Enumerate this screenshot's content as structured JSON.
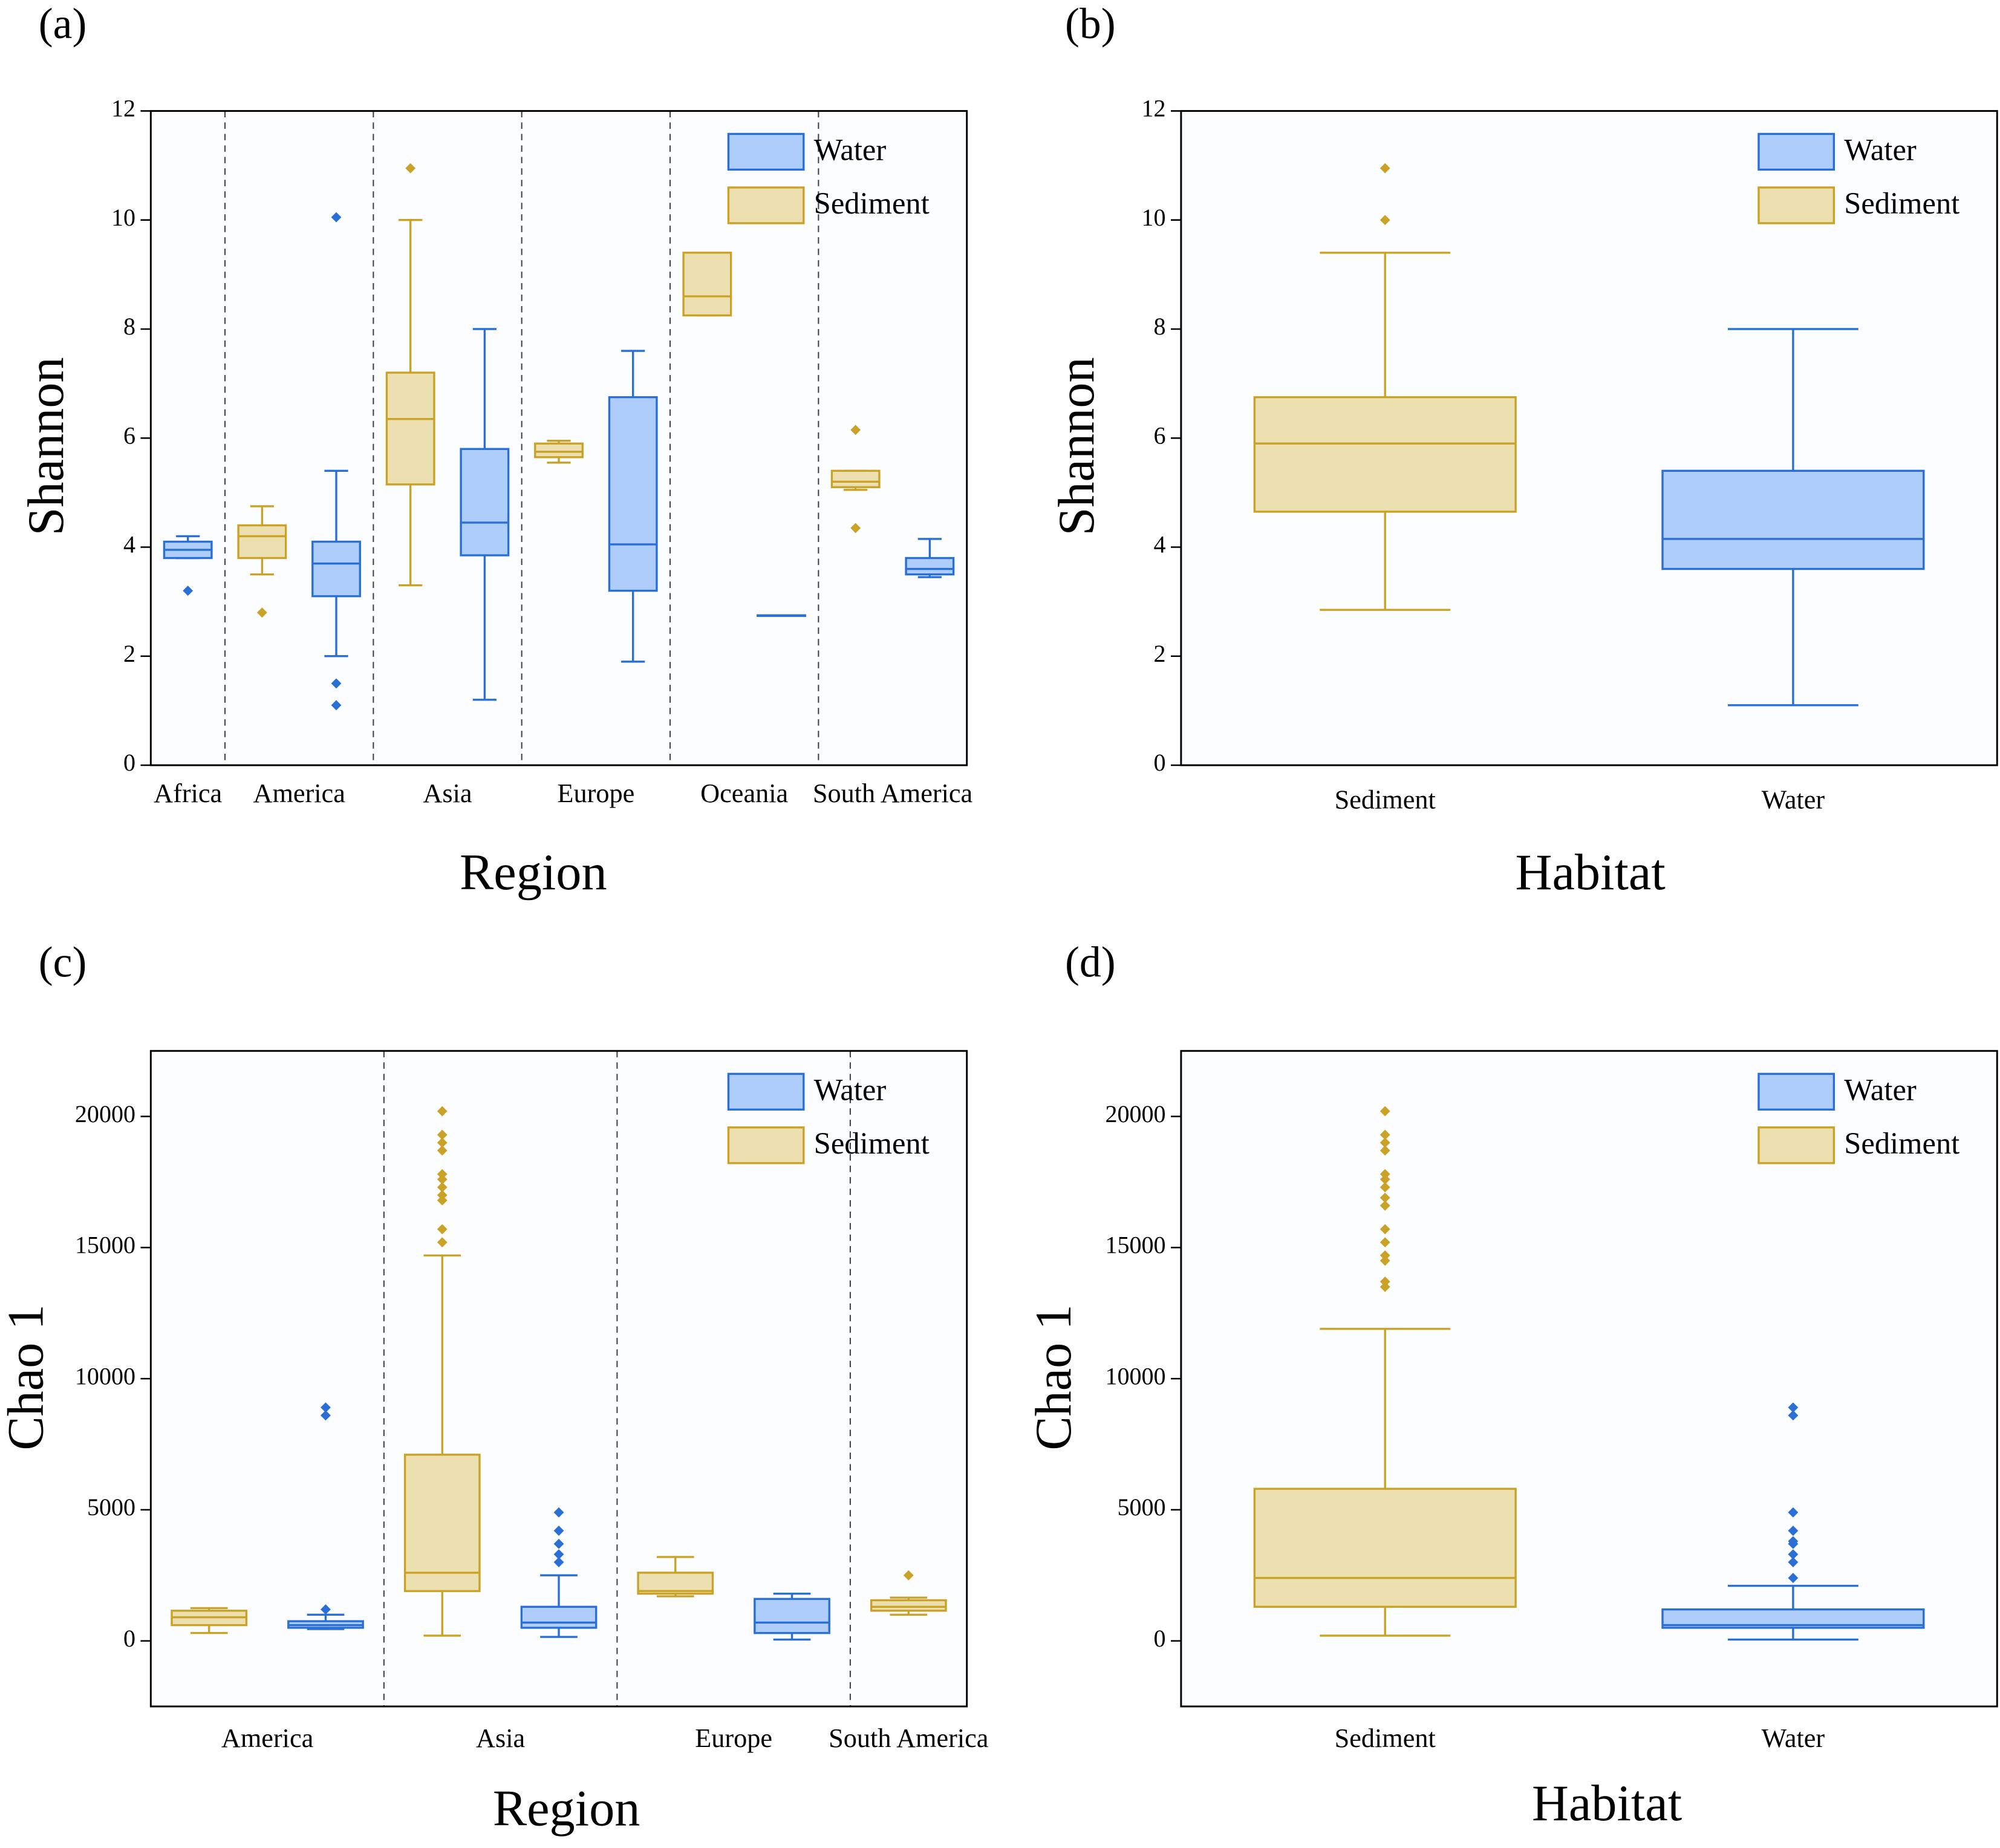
{
  "chart_data": [
    {
      "type": "box",
      "title": "(a)",
      "x_label": "Region",
      "y_label": "Shannon",
      "categories": [
        "Africa",
        "America",
        "Asia",
        "Europe",
        "Oceania",
        "South America"
      ],
      "ylim": [
        0,
        12
      ],
      "yticks": [
        0,
        2,
        4,
        6,
        8,
        10,
        12
      ],
      "legend": "upper right",
      "category_dividers": true,
      "series": [
        {
          "name": "Water",
          "color": "#2a6fd6",
          "fill": "#aecdfb",
          "values": [
            {
              "min": 3.8,
              "q1": 3.8,
              "median": 3.95,
              "q3": 4.1,
              "max": 4.2,
              "outliers": [
                3.2
              ]
            },
            {
              "min": 2.0,
              "q1": 3.1,
              "median": 3.7,
              "q3": 4.1,
              "max": 5.4,
              "outliers": [
                10.05,
                1.5,
                1.1
              ]
            },
            {
              "min": 1.2,
              "q1": 3.85,
              "median": 4.45,
              "q3": 5.8,
              "max": 8.0,
              "outliers": []
            },
            {
              "min": 1.9,
              "q1": 3.2,
              "median": 4.05,
              "q3": 6.75,
              "max": 7.6,
              "outliers": []
            },
            {
              "min": 2.75,
              "q1": 2.75,
              "median": 2.75,
              "q3": 2.75,
              "max": 2.75,
              "outliers": []
            },
            {
              "min": 3.45,
              "q1": 3.5,
              "median": 3.6,
              "q3": 3.8,
              "max": 4.15,
              "outliers": []
            }
          ]
        },
        {
          "name": "Sediment",
          "color": "#c9a227",
          "fill": "#ede0b0",
          "values": [
            null,
            {
              "min": 3.5,
              "q1": 3.8,
              "median": 4.2,
              "q3": 4.4,
              "max": 4.75,
              "outliers": [
                2.8
              ]
            },
            {
              "min": 3.3,
              "q1": 5.15,
              "median": 6.35,
              "q3": 7.2,
              "max": 10.0,
              "outliers": [
                10.95
              ]
            },
            {
              "min": 5.55,
              "q1": 5.65,
              "median": 5.75,
              "q3": 5.9,
              "max": 5.95,
              "outliers": []
            },
            {
              "min": 8.25,
              "q1": 8.25,
              "median": 8.6,
              "q3": 9.4,
              "max": 9.4,
              "outliers": []
            },
            {
              "min": 5.05,
              "q1": 5.1,
              "median": 5.2,
              "q3": 5.4,
              "max": 5.4,
              "outliers": [
                6.15,
                4.35
              ]
            }
          ]
        }
      ]
    },
    {
      "type": "box",
      "title": "(b)",
      "x_label": "Habitat",
      "y_label": "Shannon",
      "categories": [
        "Sediment",
        "Water"
      ],
      "ylim": [
        0,
        12
      ],
      "yticks": [
        0,
        2,
        4,
        6,
        8,
        10,
        12
      ],
      "legend": "upper right",
      "category_dividers": false,
      "series": [
        {
          "name": "Water",
          "color": "#2a6fd6",
          "fill": "#aecdfb",
          "values": [
            null,
            {
              "min": 1.1,
              "q1": 3.6,
              "median": 4.15,
              "q3": 5.4,
              "max": 8.0,
              "outliers": []
            }
          ]
        },
        {
          "name": "Sediment",
          "color": "#c9a227",
          "fill": "#ede0b0",
          "values": [
            {
              "min": 2.85,
              "q1": 4.65,
              "median": 5.9,
              "q3": 6.75,
              "max": 9.4,
              "outliers": [
                10.0,
                10.95
              ]
            },
            null
          ]
        }
      ]
    },
    {
      "type": "box",
      "title": "(c)",
      "x_label": "Region",
      "y_label": "Chao 1",
      "categories": [
        "America",
        "Asia",
        "Europe",
        "South America"
      ],
      "ylim": [
        -2500,
        22500
      ],
      "yticks": [
        0,
        5000,
        10000,
        15000,
        20000
      ],
      "legend": "upper right",
      "category_dividers": true,
      "series": [
        {
          "name": "Water",
          "color": "#2a6fd6",
          "fill": "#aecdfb",
          "values": [
            {
              "min": 450,
              "q1": 500,
              "median": 600,
              "q3": 750,
              "max": 1000,
              "outliers": [
                8600,
                8900,
                1200
              ]
            },
            {
              "min": 150,
              "q1": 500,
              "median": 700,
              "q3": 1300,
              "max": 2500,
              "outliers": [
                3000,
                3300,
                3700,
                4200,
                4900
              ]
            },
            {
              "min": 50,
              "q1": 300,
              "median": 700,
              "q3": 1600,
              "max": 1800,
              "outliers": []
            },
            null
          ]
        },
        {
          "name": "Sediment",
          "color": "#c9a227",
          "fill": "#ede0b0",
          "values": [
            {
              "min": 300,
              "q1": 600,
              "median": 900,
              "q3": 1150,
              "max": 1250,
              "outliers": []
            },
            {
              "min": 200,
              "q1": 1900,
              "median": 2600,
              "q3": 7100,
              "max": 14700,
              "outliers": [
                15200,
                15700,
                16800,
                17000,
                17300,
                17600,
                17800,
                18700,
                19000,
                19300,
                20200
              ]
            },
            {
              "min": 1700,
              "q1": 1800,
              "median": 1900,
              "q3": 2600,
              "max": 3200,
              "outliers": []
            },
            {
              "min": 1000,
              "q1": 1150,
              "median": 1300,
              "q3": 1550,
              "max": 1650,
              "outliers": [
                2500
              ]
            }
          ]
        }
      ]
    },
    {
      "type": "box",
      "title": "(d)",
      "x_label": "Habitat",
      "y_label": "Chao 1",
      "categories": [
        "Sediment",
        "Water"
      ],
      "ylim": [
        -2500,
        22500
      ],
      "yticks": [
        0,
        5000,
        10000,
        15000,
        20000
      ],
      "legend": "upper right",
      "category_dividers": false,
      "series": [
        {
          "name": "Water",
          "color": "#2a6fd6",
          "fill": "#aecdfb",
          "values": [
            null,
            {
              "min": 50,
              "q1": 500,
              "median": 600,
              "q3": 1200,
              "max": 2100,
              "outliers": [
                2400,
                3000,
                3300,
                3700,
                3800,
                4200,
                4900,
                8600,
                8900
              ]
            }
          ]
        },
        {
          "name": "Sediment",
          "color": "#c9a227",
          "fill": "#ede0b0",
          "values": [
            {
              "min": 200,
              "q1": 1300,
              "median": 2400,
              "q3": 5800,
              "max": 11900,
              "outliers": [
                13500,
                13700,
                14500,
                14700,
                15200,
                15700,
                16600,
                16900,
                17300,
                17600,
                17800,
                18700,
                19000,
                19300,
                20200
              ]
            },
            null
          ]
        }
      ]
    }
  ]
}
